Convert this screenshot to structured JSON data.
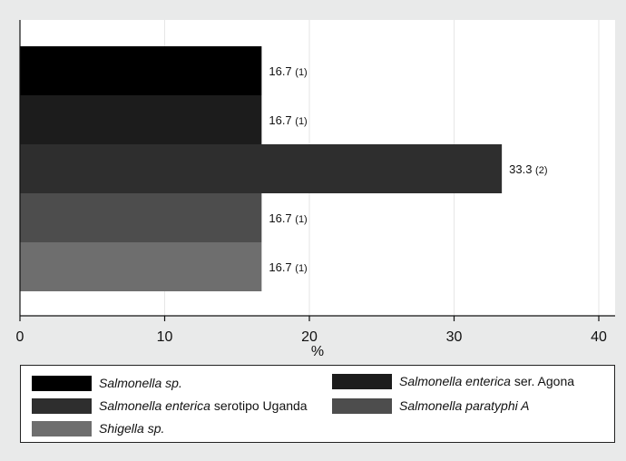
{
  "chart_data": {
    "type": "bar",
    "orientation": "horizontal",
    "xlabel": "%",
    "xlim": [
      0,
      40
    ],
    "xticks": [
      0,
      10,
      20,
      30,
      40
    ],
    "grid": true,
    "legend_position": "bottom",
    "bars": [
      {
        "value": 16.7,
        "label_value": "16.7",
        "label_count": "(1)",
        "color": "#000000"
      },
      {
        "value": 16.7,
        "label_value": "16.7",
        "label_count": "(1)",
        "color": "#1c1c1c"
      },
      {
        "value": 33.3,
        "label_value": "33.3",
        "label_count": "(2)",
        "color": "#2e2e2e"
      },
      {
        "value": 16.7,
        "label_value": "16.7",
        "label_count": "(1)",
        "color": "#4d4d4d"
      },
      {
        "value": 16.7,
        "label_value": "16.7",
        "label_count": "(1)",
        "color": "#6e6e6e"
      }
    ],
    "legend": [
      {
        "italic": "Salmonella sp.",
        "plain": "",
        "color": "#000000"
      },
      {
        "italic": "Salmonella enterica",
        "plain": " ser. Agona",
        "color": "#1c1c1c"
      },
      {
        "italic": "Salmonella enterica",
        "plain": " serotipo Uganda",
        "color": "#2e2e2e"
      },
      {
        "italic": "Salmonella paratyphi A",
        "plain": "",
        "color": "#4d4d4d"
      },
      {
        "italic": "Shigella sp.",
        "plain": "",
        "color": "#6e6e6e"
      }
    ]
  }
}
